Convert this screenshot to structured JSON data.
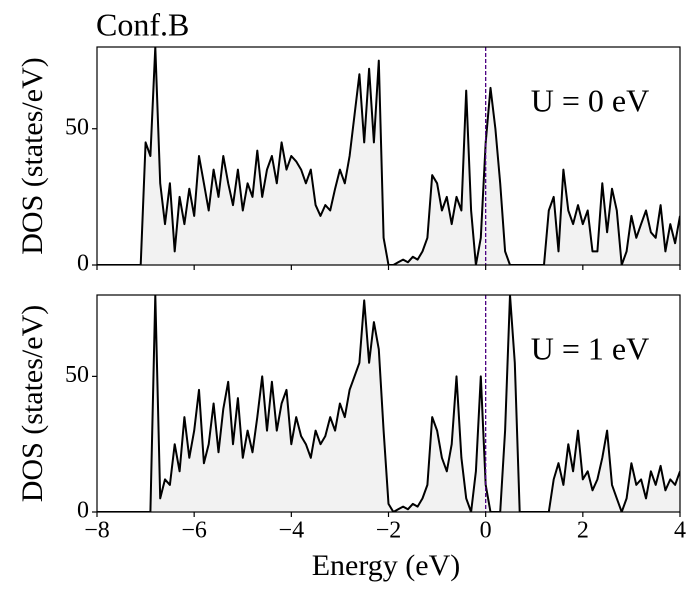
{
  "chart_data": [
    {
      "type": "line",
      "title": "Conf.B",
      "annotation": "U = 0 eV",
      "ylabel": "DOS (states/eV)",
      "color": "#000000",
      "fill": "#f2f2f2",
      "vline": 0,
      "vline_color": "#4b0082",
      "xlim": [
        -8,
        4
      ],
      "ylim": [
        0,
        80
      ],
      "yticks": [
        0,
        50
      ],
      "x": [
        -8,
        -7.9,
        -7.8,
        -7.7,
        -7.6,
        -7.5,
        -7.4,
        -7.3,
        -7.2,
        -7.1,
        -7,
        -6.9,
        -6.8,
        -6.7,
        -6.6,
        -6.5,
        -6.4,
        -6.3,
        -6.2,
        -6.1,
        -6,
        -5.9,
        -5.8,
        -5.7,
        -5.6,
        -5.5,
        -5.4,
        -5.3,
        -5.2,
        -5.1,
        -5,
        -4.9,
        -4.8,
        -4.7,
        -4.6,
        -4.5,
        -4.4,
        -4.3,
        -4.2,
        -4.1,
        -4,
        -3.9,
        -3.8,
        -3.7,
        -3.6,
        -3.5,
        -3.4,
        -3.3,
        -3.2,
        -3.1,
        -3,
        -2.9,
        -2.8,
        -2.7,
        -2.6,
        -2.5,
        -2.4,
        -2.3,
        -2.2,
        -2.1,
        -2,
        -1.9,
        -1.8,
        -1.7,
        -1.6,
        -1.5,
        -1.4,
        -1.3,
        -1.2,
        -1.1,
        -1,
        -0.9,
        -0.8,
        -0.7,
        -0.6,
        -0.5,
        -0.4,
        -0.3,
        -0.2,
        -0.1,
        0,
        0.1,
        0.2,
        0.3,
        0.4,
        0.5,
        0.6,
        0.7,
        0.8,
        0.9,
        1,
        1.1,
        1.2,
        1.3,
        1.4,
        1.5,
        1.6,
        1.7,
        1.8,
        1.9,
        2,
        2.1,
        2.2,
        2.3,
        2.4,
        2.5,
        2.6,
        2.7,
        2.8,
        2.9,
        3,
        3.1,
        3.2,
        3.3,
        3.4,
        3.5,
        3.6,
        3.7,
        3.8,
        3.9,
        4
      ],
      "values": [
        0,
        0,
        0,
        0,
        0,
        0,
        0,
        0,
        0,
        0,
        45,
        40,
        80,
        30,
        15,
        30,
        5,
        25,
        15,
        28,
        18,
        40,
        30,
        20,
        35,
        25,
        40,
        30,
        22,
        35,
        20,
        30,
        25,
        42,
        25,
        35,
        40,
        30,
        45,
        35,
        40,
        38,
        35,
        30,
        35,
        22,
        18,
        22,
        20,
        28,
        35,
        30,
        40,
        55,
        70,
        45,
        72,
        45,
        75,
        10,
        0,
        0,
        1,
        2,
        1,
        3,
        2,
        5,
        10,
        33,
        30,
        20,
        25,
        15,
        25,
        20,
        64,
        20,
        0,
        10,
        45,
        65,
        50,
        30,
        5,
        0,
        0,
        0,
        0,
        0,
        0,
        0,
        0,
        20,
        25,
        5,
        35,
        20,
        15,
        22,
        15,
        20,
        5,
        5,
        30,
        12,
        28,
        20,
        0,
        5,
        18,
        10,
        15,
        20,
        12,
        10,
        22,
        5,
        15,
        8,
        18
      ]
    },
    {
      "type": "line",
      "annotation": "U = 1 eV",
      "ylabel": "DOS (states/eV)",
      "xlabel": "Energy (eV)",
      "color": "#000000",
      "fill": "#f2f2f2",
      "vline": 0,
      "vline_color": "#4b0082",
      "xlim": [
        -8,
        4
      ],
      "ylim": [
        0,
        80
      ],
      "yticks": [
        0,
        50
      ],
      "xticks": [
        {
          "value": -8,
          "label": "−8"
        },
        {
          "value": -6,
          "label": "−6"
        },
        {
          "value": -4,
          "label": "−4"
        },
        {
          "value": -2,
          "label": "−2"
        },
        0,
        2,
        4
      ],
      "x": [
        -8,
        -7.9,
        -7.8,
        -7.7,
        -7.6,
        -7.5,
        -7.4,
        -7.3,
        -7.2,
        -7.1,
        -7,
        -6.9,
        -6.8,
        -6.7,
        -6.6,
        -6.5,
        -6.4,
        -6.3,
        -6.2,
        -6.1,
        -6,
        -5.9,
        -5.8,
        -5.7,
        -5.6,
        -5.5,
        -5.4,
        -5.3,
        -5.2,
        -5.1,
        -5,
        -4.9,
        -4.8,
        -4.7,
        -4.6,
        -4.5,
        -4.4,
        -4.3,
        -4.2,
        -4.1,
        -4,
        -3.9,
        -3.8,
        -3.7,
        -3.6,
        -3.5,
        -3.4,
        -3.3,
        -3.2,
        -3.1,
        -3,
        -2.9,
        -2.8,
        -2.7,
        -2.6,
        -2.5,
        -2.4,
        -2.3,
        -2.2,
        -2.1,
        -2,
        -1.9,
        -1.8,
        -1.7,
        -1.6,
        -1.5,
        -1.4,
        -1.3,
        -1.2,
        -1.1,
        -1,
        -0.9,
        -0.8,
        -0.7,
        -0.6,
        -0.5,
        -0.4,
        -0.3,
        -0.2,
        -0.1,
        0,
        0.1,
        0.2,
        0.3,
        0.4,
        0.5,
        0.6,
        0.7,
        0.8,
        0.9,
        1,
        1.1,
        1.2,
        1.3,
        1.4,
        1.5,
        1.6,
        1.7,
        1.8,
        1.9,
        2,
        2.1,
        2.2,
        2.3,
        2.4,
        2.5,
        2.6,
        2.7,
        2.8,
        2.9,
        3,
        3.1,
        3.2,
        3.3,
        3.4,
        3.5,
        3.6,
        3.7,
        3.8,
        3.9,
        4
      ],
      "values": [
        0,
        0,
        0,
        0,
        0,
        0,
        0,
        0,
        0,
        0,
        0,
        0,
        80,
        5,
        12,
        10,
        25,
        15,
        35,
        20,
        30,
        45,
        18,
        25,
        40,
        22,
        38,
        48,
        25,
        42,
        20,
        30,
        22,
        35,
        50,
        30,
        48,
        30,
        40,
        45,
        25,
        35,
        28,
        25,
        20,
        30,
        25,
        28,
        35,
        30,
        40,
        35,
        45,
        50,
        55,
        78,
        55,
        70,
        60,
        30,
        3,
        0,
        1,
        2,
        1,
        3,
        2,
        5,
        10,
        35,
        30,
        20,
        15,
        25,
        50,
        20,
        5,
        0,
        15,
        50,
        10,
        0,
        0,
        0,
        30,
        80,
        55,
        0,
        0,
        0,
        0,
        0,
        0,
        0,
        12,
        18,
        10,
        25,
        15,
        30,
        12,
        15,
        8,
        12,
        20,
        30,
        10,
        5,
        0,
        5,
        18,
        10,
        12,
        5,
        15,
        10,
        17,
        8,
        12,
        10,
        15
      ]
    }
  ]
}
